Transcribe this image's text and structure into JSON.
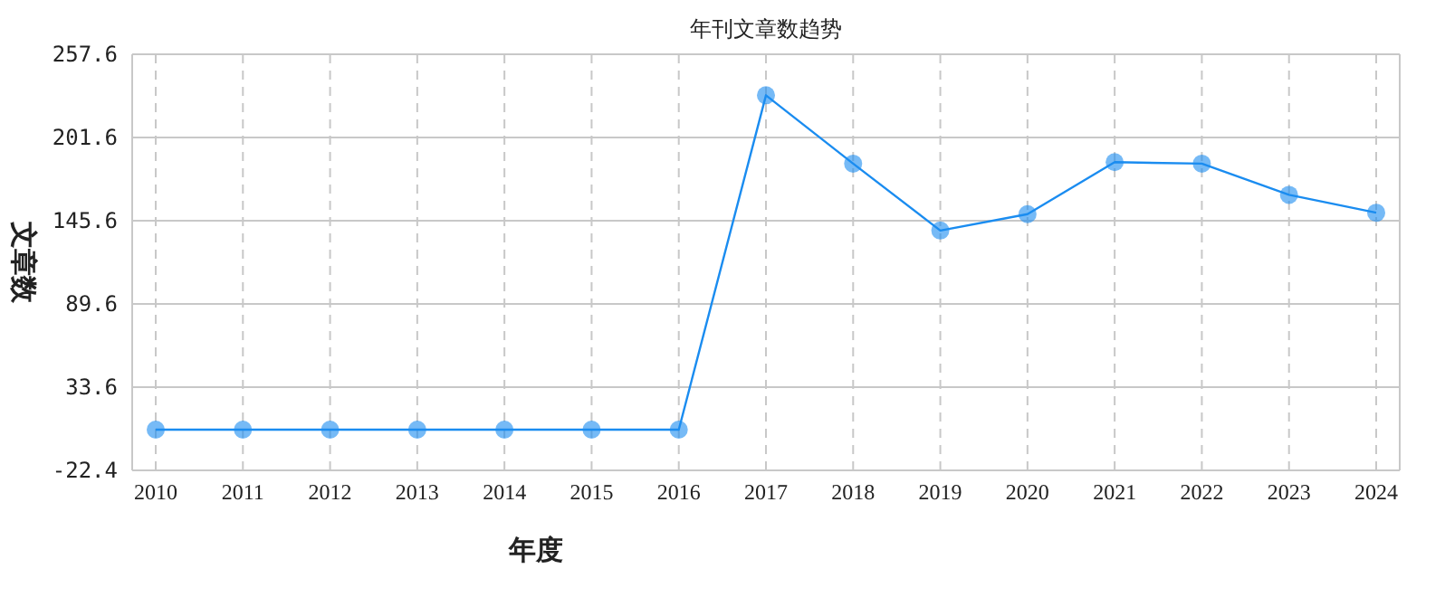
{
  "chart_data": {
    "type": "line",
    "title": "年刊文章数趋势",
    "xlabel": "年度",
    "ylabel": "文章数",
    "categories": [
      "2010",
      "2011",
      "2012",
      "2013",
      "2014",
      "2015",
      "2016",
      "2017",
      "2018",
      "2019",
      "2020",
      "2021",
      "2022",
      "2023",
      "2024"
    ],
    "series": [
      {
        "color": "#1a8cf0",
        "values": [
          5,
          5,
          5,
          5,
          5,
          5,
          5,
          230,
          184,
          139,
          150,
          185,
          184,
          163,
          151
        ]
      }
    ],
    "ylim": [
      -22.4,
      257.6
    ],
    "yticks": [
      -22.4,
      33.6,
      89.6,
      145.6,
      201.6,
      257.6
    ],
    "grid": true,
    "marker": "circle"
  }
}
